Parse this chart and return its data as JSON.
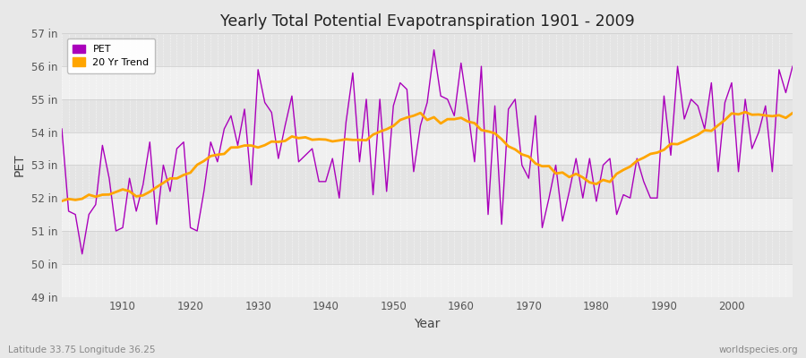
{
  "title": "Yearly Total Potential Evapotranspiration 1901 - 2009",
  "xlabel": "Year",
  "ylabel": "PET",
  "subtitle_left": "Latitude 33.75 Longitude 36.25",
  "subtitle_right": "worldspecies.org",
  "pet_color": "#AA00BB",
  "trend_color": "#FFA500",
  "background_color": "#E8E8E8",
  "plot_bg_color": "#EAEAEA",
  "band_color_light": "#F0F0F0",
  "band_color_dark": "#E4E4E4",
  "ylim": [
    49,
    57
  ],
  "yticks": [
    49,
    50,
    51,
    52,
    53,
    54,
    55,
    56,
    57
  ],
  "xlim": [
    1901,
    2009
  ],
  "xticks": [
    1910,
    1920,
    1930,
    1940,
    1950,
    1960,
    1970,
    1980,
    1990,
    2000
  ],
  "years": [
    1901,
    1902,
    1903,
    1904,
    1905,
    1906,
    1907,
    1908,
    1909,
    1910,
    1911,
    1912,
    1913,
    1914,
    1915,
    1916,
    1917,
    1918,
    1919,
    1920,
    1921,
    1922,
    1923,
    1924,
    1925,
    1926,
    1927,
    1928,
    1929,
    1930,
    1931,
    1932,
    1933,
    1934,
    1935,
    1936,
    1937,
    1938,
    1939,
    1940,
    1941,
    1942,
    1943,
    1944,
    1945,
    1946,
    1947,
    1948,
    1949,
    1950,
    1951,
    1952,
    1953,
    1954,
    1955,
    1956,
    1957,
    1958,
    1959,
    1960,
    1961,
    1962,
    1963,
    1964,
    1965,
    1966,
    1967,
    1968,
    1969,
    1970,
    1971,
    1972,
    1973,
    1974,
    1975,
    1976,
    1977,
    1978,
    1979,
    1980,
    1981,
    1982,
    1983,
    1984,
    1985,
    1986,
    1987,
    1988,
    1989,
    1990,
    1991,
    1992,
    1993,
    1994,
    1995,
    1996,
    1997,
    1998,
    1999,
    2000,
    2001,
    2002,
    2003,
    2004,
    2005,
    2006,
    2007,
    2008,
    2009
  ],
  "pet": [
    54.1,
    51.6,
    51.5,
    50.3,
    51.5,
    51.8,
    53.6,
    52.6,
    51.0,
    51.1,
    52.6,
    51.6,
    52.4,
    53.7,
    51.2,
    53.0,
    52.2,
    53.5,
    53.7,
    51.1,
    51.0,
    52.2,
    53.7,
    53.1,
    54.1,
    54.5,
    53.6,
    54.7,
    52.4,
    55.9,
    54.9,
    54.6,
    53.2,
    54.2,
    55.1,
    53.1,
    53.3,
    53.5,
    52.5,
    52.5,
    53.2,
    52.0,
    54.3,
    55.8,
    53.1,
    55.0,
    52.1,
    55.0,
    52.2,
    54.8,
    55.5,
    55.3,
    52.8,
    54.2,
    54.9,
    56.5,
    55.1,
    55.0,
    54.5,
    56.1,
    54.7,
    53.1,
    56.0,
    51.5,
    54.8,
    51.2,
    54.7,
    55.0,
    53.0,
    52.6,
    54.5,
    51.1,
    52.0,
    53.0,
    51.3,
    52.2,
    53.2,
    52.0,
    53.2,
    51.9,
    53.0,
    53.2,
    51.5,
    52.1,
    52.0,
    53.2,
    52.5,
    52.0,
    52.0,
    55.1,
    53.3,
    56.0,
    54.4,
    55.0,
    54.8,
    54.1,
    55.5,
    52.8,
    54.9,
    55.5,
    52.8,
    55.0,
    53.5,
    54.0,
    54.8,
    52.8,
    55.9,
    55.2,
    56.0
  ]
}
